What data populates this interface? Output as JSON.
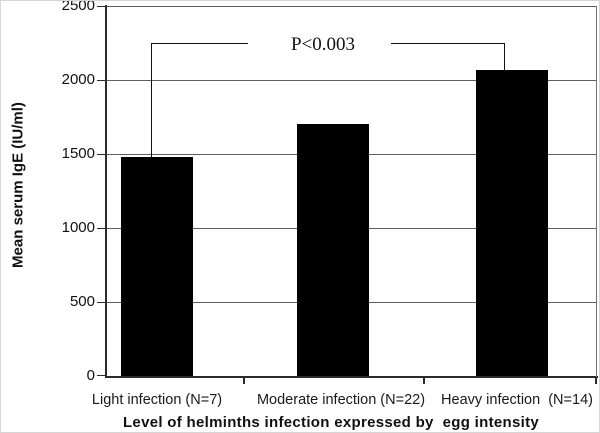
{
  "figure": {
    "background": "#ffffff",
    "border_color": "#d6d6d6",
    "bar_color": "#000000",
    "axis_color": "#2b2b2b",
    "gridline_color": "#5f5f5f"
  },
  "chart_data": {
    "type": "bar",
    "title": "",
    "xlabel": "Level of helminths infection expressed by  egg intensity",
    "ylabel": "Mean serum IgE (IU/ml)",
    "categories": [
      "Light infection (N=7)",
      "Moderate infection (N=22)",
      "Heavy infection  (N=14)"
    ],
    "values": [
      1480,
      1700,
      2070
    ],
    "sample_sizes": [
      7,
      22,
      14
    ],
    "ylim": [
      0,
      2500
    ],
    "yticks": [
      0,
      500,
      1000,
      1500,
      2000,
      2500
    ],
    "grid": true,
    "legend": "none",
    "annotation": {
      "text": "P<0.003",
      "connects": [
        "Light infection (N=7)",
        "Heavy infection  (N=14)"
      ],
      "bracket_level": 2250
    }
  }
}
